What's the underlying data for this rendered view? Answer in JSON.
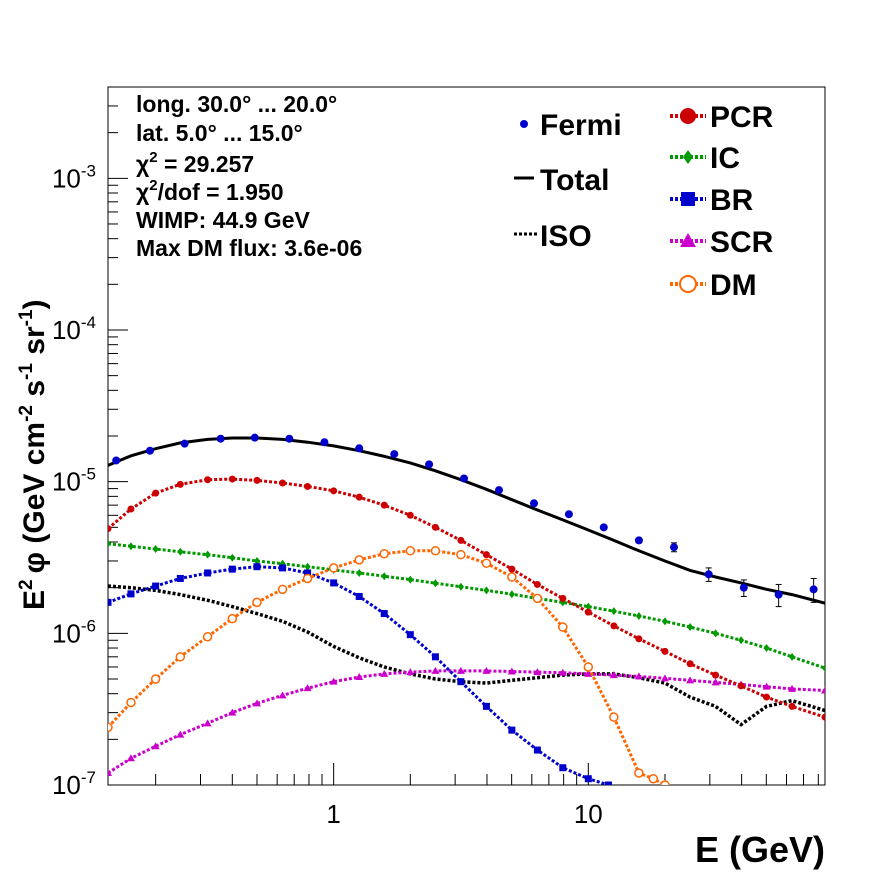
{
  "colors": {
    "fermi": "#0000cc",
    "total": "#000000",
    "iso": "#000000",
    "pcr": "#cc0000",
    "ic": "#009900",
    "br": "#0000cc",
    "scr": "#cc00cc",
    "dm": "#ff6600"
  },
  "info": {
    "line1": "long. 30.0° ... 20.0°",
    "line2": "lat. 5.0° ... 15.0°",
    "line3_sym": "χ",
    "line3_sup": "2",
    "line3_rest": " = 29.257",
    "line4_sym": "χ",
    "line4_sup": "2",
    "line4_rest": "/dof = 1.950",
    "line5": "WIMP: 44.9 GeV",
    "line6": "Max DM flux: 3.6e-06"
  },
  "legend": {
    "fermi": "Fermi",
    "total": "Total",
    "iso": "ISO",
    "pcr": "PCR",
    "ic": "IC",
    "br": "BR",
    "scr": "SCR",
    "dm": "DM"
  },
  "axes": {
    "x_title": "E (GeV)",
    "x_ticks": [
      {
        "value": 1,
        "label": "1"
      },
      {
        "value": 10,
        "label": "10"
      }
    ],
    "y_title_main": "E",
    "y_title_sup": "2",
    "y_title_phi": "φ (GeV cm",
    "y_title_sup2": "-2",
    "y_title_s": " s",
    "y_title_sup3": "-1",
    "y_title_sr": " sr",
    "y_title_sup4": "-1",
    "y_title_end": ")",
    "y_ticks": [
      {
        "value": 1e-07,
        "base": "10",
        "exp": "-7"
      },
      {
        "value": 1e-06,
        "base": "10",
        "exp": "-6"
      },
      {
        "value": 1e-05,
        "base": "10",
        "exp": "-5"
      },
      {
        "value": 0.0001,
        "base": "10",
        "exp": "-4"
      },
      {
        "value": 0.001,
        "base": "10",
        "exp": "-3"
      }
    ]
  },
  "chart_data": {
    "type": "scatter",
    "x_scale": "log",
    "y_scale": "log",
    "xlim": [
      0.13,
      85
    ],
    "ylim": [
      1e-07,
      0.004
    ],
    "xlabel": "E (GeV)",
    "ylabel": "E² φ (GeV cm⁻² s⁻¹ sr⁻¹)",
    "legend_placement": "top-right",
    "fermi": {
      "name": "Fermi",
      "x": [
        0.14,
        0.19,
        0.26,
        0.36,
        0.49,
        0.67,
        0.92,
        1.26,
        1.73,
        2.37,
        3.25,
        4.46,
        6.12,
        8.39,
        11.5,
        15.8,
        21.7,
        29.7,
        40.8,
        55.9,
        76.7
      ],
      "y": [
        1.38e-05,
        1.6e-05,
        1.78e-05,
        1.92e-05,
        1.95e-05,
        1.92e-05,
        1.82e-05,
        1.66e-05,
        1.52e-05,
        1.3e-05,
        1.05e-05,
        8.8e-06,
        7.2e-06,
        6.1e-06,
        5e-06,
        4.1e-06,
        3.7e-06,
        2.45e-06,
        2e-06,
        1.8e-06,
        1.95e-06
      ],
      "err": [
        0,
        0,
        0,
        0,
        0,
        0,
        0,
        0,
        0,
        0,
        0,
        0,
        0,
        0,
        1e-07,
        1.5e-07,
        2.5e-07,
        2.5e-07,
        2.5e-07,
        3e-07,
        3.5e-07
      ]
    },
    "series": [
      {
        "name": "Total",
        "style": "solid",
        "x": [
          0.13,
          0.16,
          0.2,
          0.25,
          0.32,
          0.4,
          0.5,
          0.63,
          0.79,
          1.0,
          1.26,
          1.58,
          2.0,
          2.51,
          3.16,
          3.98,
          5.01,
          6.31,
          7.94,
          10.0,
          12.6,
          15.8,
          20.0,
          25.1,
          31.6,
          39.8,
          50.1,
          63.1,
          85
        ],
        "y": [
          1.28e-05,
          1.48e-05,
          1.65e-05,
          1.8e-05,
          1.9e-05,
          1.94e-05,
          1.94e-05,
          1.9e-05,
          1.82e-05,
          1.72e-05,
          1.6e-05,
          1.47e-05,
          1.33e-05,
          1.18e-05,
          1.03e-05,
          8.9e-06,
          7.6e-06,
          6.5e-06,
          5.6e-06,
          4.8e-06,
          4.1e-06,
          3.5e-06,
          3e-06,
          2.6e-06,
          2.35e-06,
          2.15e-06,
          1.95e-06,
          1.8e-06,
          1.58e-06
        ]
      },
      {
        "name": "ISO",
        "style": "dotted",
        "x": [
          0.13,
          0.16,
          0.2,
          0.25,
          0.32,
          0.4,
          0.5,
          0.63,
          0.79,
          1.0,
          1.26,
          1.58,
          2.0,
          2.51,
          3.16,
          3.98,
          5.01,
          6.31,
          7.94,
          10.0,
          12.6,
          15.8,
          20.0,
          25.1,
          31.6,
          39.8,
          50.1,
          63.1,
          85
        ],
        "y": [
          2.05e-06,
          2e-06,
          1.92e-06,
          1.8e-06,
          1.65e-06,
          1.5e-06,
          1.35e-06,
          1.2e-06,
          1.02e-06,
          8.2e-07,
          6.9e-07,
          6e-07,
          5.4e-07,
          5e-07,
          4.8e-07,
          4.7e-07,
          4.9e-07,
          5.1e-07,
          5.3e-07,
          5.4e-07,
          5.4e-07,
          5.1e-07,
          4.7e-07,
          3.8e-07,
          3.3e-07,
          2.5e-07,
          3.3e-07,
          3.6e-07,
          3.1e-07
        ]
      },
      {
        "name": "PCR",
        "style": "markers",
        "x": [
          0.13,
          0.16,
          0.2,
          0.25,
          0.32,
          0.4,
          0.5,
          0.63,
          0.79,
          1.0,
          1.26,
          1.58,
          2.0,
          2.51,
          3.16,
          3.98,
          5.01,
          6.31,
          7.94,
          10.0,
          12.6,
          15.8,
          20.0,
          25.1,
          31.6,
          39.8,
          50.1,
          63.1,
          85
        ],
        "y": [
          4.9e-06,
          6.6e-06,
          8.4e-06,
          9.6e-06,
          1.03e-05,
          1.04e-05,
          1.02e-05,
          9.8e-06,
          9.3e-06,
          8.7e-06,
          7.9e-06,
          7e-06,
          6e-06,
          5e-06,
          4.1e-06,
          3.3e-06,
          2.65e-06,
          2.1e-06,
          1.7e-06,
          1.38e-06,
          1.12e-06,
          9.2e-07,
          7.6e-07,
          6.3e-07,
          5.3e-07,
          4.5e-07,
          3.8e-07,
          3.3e-07,
          2.8e-07
        ]
      },
      {
        "name": "IC",
        "style": "markers",
        "x": [
          0.13,
          0.16,
          0.2,
          0.25,
          0.32,
          0.4,
          0.5,
          0.63,
          0.79,
          1.0,
          1.26,
          1.58,
          2.0,
          2.51,
          3.16,
          3.98,
          5.01,
          6.31,
          7.94,
          10.0,
          12.6,
          15.8,
          20.0,
          25.1,
          31.6,
          39.8,
          50.1,
          63.1,
          85
        ],
        "y": [
          3.9e-06,
          3.75e-06,
          3.6e-06,
          3.45e-06,
          3.3e-06,
          3.15e-06,
          3e-06,
          2.88e-06,
          2.75e-06,
          2.62e-06,
          2.5e-06,
          2.38e-06,
          2.26e-06,
          2.14e-06,
          2.03e-06,
          1.92e-06,
          1.81e-06,
          1.7e-06,
          1.6e-06,
          1.5e-06,
          1.4e-06,
          1.3e-06,
          1.2e-06,
          1.1e-06,
          1e-06,
          9e-07,
          8e-07,
          7e-07,
          5.9e-07
        ]
      },
      {
        "name": "BR",
        "style": "markers",
        "x": [
          0.13,
          0.16,
          0.2,
          0.25,
          0.32,
          0.4,
          0.5,
          0.63,
          0.79,
          1.0,
          1.26,
          1.58,
          2.0,
          2.51,
          3.16,
          3.98,
          5.01,
          6.31,
          7.94,
          10.0,
          12.0
        ],
        "y": [
          1.6e-06,
          1.82e-06,
          2.05e-06,
          2.3e-06,
          2.5e-06,
          2.65e-06,
          2.75e-06,
          2.7e-06,
          2.5e-06,
          2.15e-06,
          1.75e-06,
          1.35e-06,
          9.8e-07,
          7e-07,
          4.8e-07,
          3.3e-07,
          2.3e-07,
          1.7e-07,
          1.3e-07,
          1.1e-07,
          1e-07
        ]
      },
      {
        "name": "SCR",
        "style": "markers",
        "x": [
          0.13,
          0.16,
          0.2,
          0.25,
          0.32,
          0.4,
          0.5,
          0.63,
          0.79,
          1.0,
          1.26,
          1.58,
          2.0,
          2.51,
          3.16,
          3.98,
          5.01,
          6.31,
          7.94,
          10.0,
          12.6,
          15.8,
          20.0,
          25.1,
          31.6,
          39.8,
          50.1,
          63.1,
          85
        ],
        "y": [
          1.2e-07,
          1.5e-07,
          1.8e-07,
          2.15e-07,
          2.55e-07,
          3e-07,
          3.45e-07,
          3.9e-07,
          4.35e-07,
          4.8e-07,
          5.15e-07,
          5.4e-07,
          5.55e-07,
          5.65e-07,
          5.65e-07,
          5.65e-07,
          5.6e-07,
          5.55e-07,
          5.5e-07,
          5.4e-07,
          5.3e-07,
          5.2e-07,
          5.05e-07,
          4.9e-07,
          4.75e-07,
          4.6e-07,
          4.45e-07,
          4.3e-07,
          4.2e-07
        ]
      },
      {
        "name": "DM",
        "style": "markers",
        "x": [
          0.13,
          0.16,
          0.2,
          0.25,
          0.32,
          0.4,
          0.5,
          0.63,
          0.79,
          1.0,
          1.26,
          1.58,
          2.0,
          2.51,
          3.16,
          3.98,
          5.01,
          6.31,
          7.94,
          10.0,
          12.6,
          15.8,
          18.0,
          20.0
        ],
        "y": [
          2.4e-07,
          3.5e-07,
          5e-07,
          7e-07,
          9.5e-07,
          1.25e-06,
          1.6e-06,
          1.95e-06,
          2.3e-06,
          2.7e-06,
          3.05e-06,
          3.35e-06,
          3.5e-06,
          3.5e-06,
          3.3e-06,
          2.9e-06,
          2.35e-06,
          1.7e-06,
          1.1e-06,
          6e-07,
          2.8e-07,
          1.2e-07,
          1.1e-07,
          1e-07
        ]
      }
    ]
  }
}
